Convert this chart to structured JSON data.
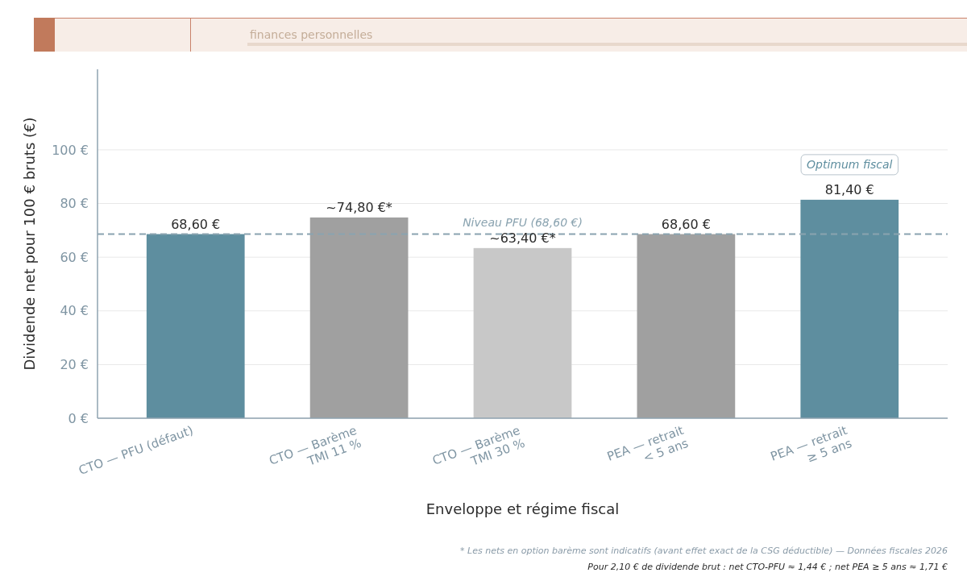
{
  "chart_data": {
    "type": "bar",
    "subtitle": "finances personnelles",
    "xlabel": "Enveloppe et régime fiscal",
    "ylabel": "Dividende net pour 100 € bruts (€)",
    "categories": [
      "CTO — PFU (défaut)",
      "CTO — Barème\nTMI 11 %",
      "CTO — Barème\nTMI 30 %",
      "PEA — retrait\n< 5 ans",
      "PEA — retrait\n≥ 5 ans"
    ],
    "values": [
      68.6,
      74.8,
      63.4,
      68.6,
      81.4
    ],
    "colors": [
      "#5e8e9f",
      "#a0a0a0",
      "#c8c8c8",
      "#a0a0a0",
      "#5e8e9f"
    ],
    "value_labels": [
      "68,60 €",
      "~74,80 €*",
      "~63,40 €*",
      "68,60 €",
      "81,40 €"
    ],
    "ylim": [
      0,
      130
    ],
    "yticks": [
      {
        "value": 0,
        "label": "0 €"
      },
      {
        "value": 20,
        "label": "20 €"
      },
      {
        "value": 40,
        "label": "40 €"
      },
      {
        "value": 60,
        "label": "60 €"
      },
      {
        "value": 80,
        "label": "80 €"
      },
      {
        "value": 100,
        "label": "100 €"
      }
    ],
    "grid": "y",
    "ref_lines": [
      {
        "axis": "y",
        "value": 68.6,
        "label": "Niveau PFU (68,60 €)",
        "color": "#8aa3b0",
        "line_style": "dashed"
      }
    ],
    "annotations": [
      {
        "text": "Optimum fiscal",
        "x": "PEA — retrait\n≥ 5 ans",
        "y": 81.4
      },
      "* Les nets en option barème sont indicatifs (avant effet exact de la CSG déductible) — Données fiscales 2026",
      "Pour 2,10 € de dividende brut : net CTO-PFU ≈ 1,44 € ; net PEA ≥ 5 ans ≈ 1,71 €"
    ]
  }
}
